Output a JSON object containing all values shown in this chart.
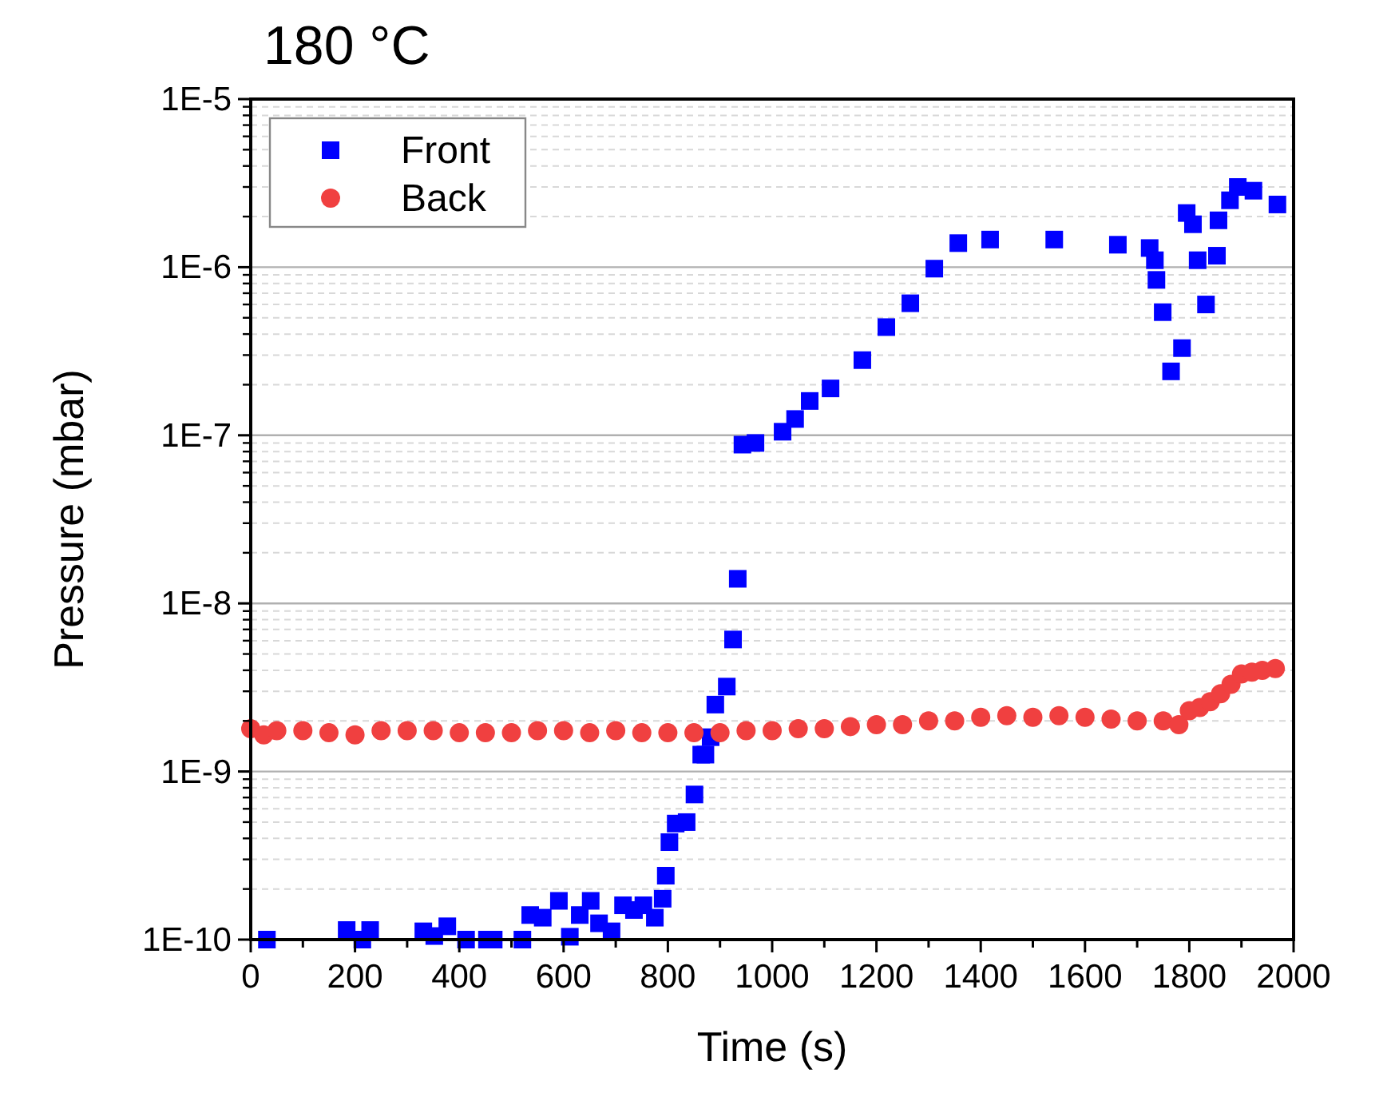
{
  "chart_data": {
    "type": "scatter",
    "title": "180 °C",
    "xlabel": "Time (s)",
    "ylabel": "Pressure (mbar)",
    "log": "y",
    "grid": "y",
    "legend": "top left",
    "xlim": [
      0,
      2000
    ],
    "xticks": [
      0,
      200,
      400,
      600,
      800,
      1000,
      1200,
      1400,
      1600,
      1800,
      2000
    ],
    "ylim": [
      1e-10,
      1e-05
    ],
    "yticks": [
      {
        "value": 1e-10,
        "label": "1E-10"
      },
      {
        "value": 1e-09,
        "label": "1E-9"
      },
      {
        "value": 1e-08,
        "label": "1E-8"
      },
      {
        "value": 1e-07,
        "label": "1E-7"
      },
      {
        "value": 1e-06,
        "label": "1E-6"
      },
      {
        "value": 1e-05,
        "label": "1E-5"
      }
    ],
    "series": [
      {
        "name": "Front",
        "color": "#0000ff",
        "marker": "square",
        "x": [
          31,
          184,
          214,
          229,
          331,
          352,
          377,
          413,
          453,
          466,
          521,
          536,
          560,
          591,
          612,
          631,
          652,
          668,
          692,
          714,
          735,
          753,
          775,
          790,
          796,
          803,
          815,
          836,
          851,
          864,
          872,
          882,
          891,
          913,
          925,
          934,
          943,
          968,
          1020,
          1044,
          1072,
          1112,
          1173,
          1219,
          1265,
          1311,
          1357,
          1418,
          1541,
          1663,
          1724,
          1734,
          1737,
          1749,
          1765,
          1786,
          1795,
          1807,
          1816,
          1832,
          1853,
          1856,
          1878,
          1893,
          1923,
          1969
        ],
        "values": [
          1e-10,
          1.14e-10,
          1e-10,
          1.14e-10,
          1.12e-10,
          1.05e-10,
          1.2e-10,
          1e-10,
          1e-10,
          1e-10,
          1e-10,
          1.4e-10,
          1.35e-10,
          1.7e-10,
          1.04e-10,
          1.4e-10,
          1.7e-10,
          1.25e-10,
          1.12e-10,
          1.6e-10,
          1.5e-10,
          1.6e-10,
          1.35e-10,
          1.75e-10,
          2.4e-10,
          3.8e-10,
          4.9e-10,
          5e-10,
          7.3e-10,
          1.26e-09,
          1.26e-09,
          1.6e-09,
          2.5e-09,
          3.2e-09,
          6.1e-09,
          1.4e-08,
          8.8e-08,
          9e-08,
          1.05e-07,
          1.25e-07,
          1.6e-07,
          1.9e-07,
          2.8e-07,
          4.4e-07,
          6.1e-07,
          9.8e-07,
          1.39e-06,
          1.46e-06,
          1.46e-06,
          1.36e-06,
          1.3e-06,
          1.1e-06,
          8.4e-07,
          5.4e-07,
          2.4e-07,
          3.3e-07,
          2.1e-06,
          1.8e-06,
          1.1e-06,
          6e-07,
          1.17e-06,
          1.9e-06,
          2.5e-06,
          3e-06,
          2.85e-06,
          2.36e-06
        ]
      },
      {
        "name": "Back",
        "color": "#f04040",
        "marker": "circle",
        "x": [
          0,
          25,
          50,
          100,
          150,
          200,
          250,
          300,
          350,
          400,
          450,
          500,
          550,
          600,
          650,
          700,
          750,
          800,
          850,
          900,
          950,
          1000,
          1050,
          1100,
          1150,
          1200,
          1250,
          1300,
          1350,
          1400,
          1450,
          1500,
          1550,
          1600,
          1650,
          1700,
          1750,
          1780,
          1800,
          1820,
          1840,
          1860,
          1880,
          1900,
          1920,
          1940,
          1965
        ],
        "values": [
          1.8e-09,
          1.65e-09,
          1.75e-09,
          1.75e-09,
          1.7e-09,
          1.65e-09,
          1.75e-09,
          1.75e-09,
          1.75e-09,
          1.7e-09,
          1.7e-09,
          1.7e-09,
          1.75e-09,
          1.75e-09,
          1.7e-09,
          1.75e-09,
          1.7e-09,
          1.7e-09,
          1.7e-09,
          1.7e-09,
          1.75e-09,
          1.75e-09,
          1.8e-09,
          1.8e-09,
          1.85e-09,
          1.9e-09,
          1.9e-09,
          2e-09,
          2e-09,
          2.1e-09,
          2.15e-09,
          2.1e-09,
          2.15e-09,
          2.1e-09,
          2.05e-09,
          2e-09,
          2e-09,
          1.9e-09,
          2.3e-09,
          2.4e-09,
          2.6e-09,
          2.9e-09,
          3.3e-09,
          3.8e-09,
          3.9e-09,
          4e-09,
          4.1e-09
        ]
      }
    ]
  }
}
